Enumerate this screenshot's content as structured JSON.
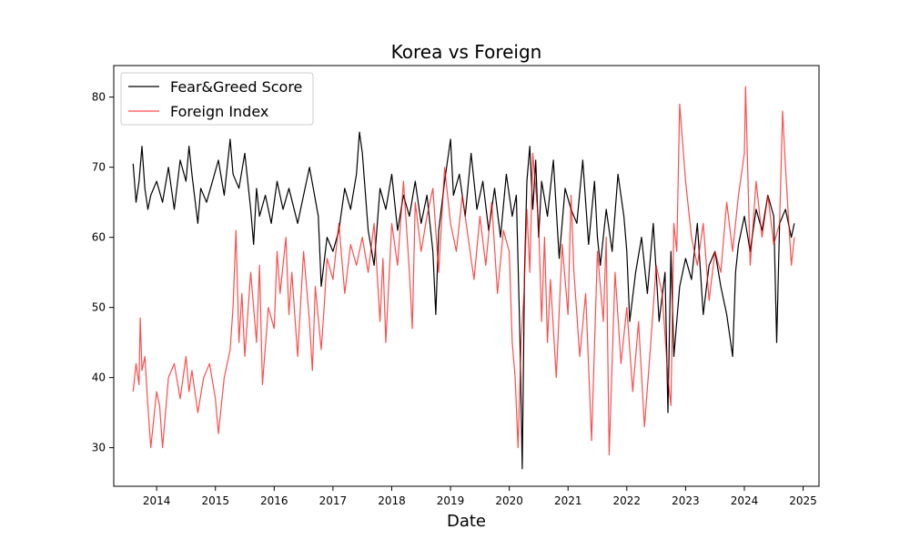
{
  "chart_data": {
    "type": "line",
    "title": "Korea vs Foreign",
    "xlabel": "Date",
    "ylabel": "",
    "xlim": [
      2013.27,
      2025.27
    ],
    "ylim": [
      24.5,
      84.5
    ],
    "xticks": [
      2014,
      2015,
      2016,
      2017,
      2018,
      2019,
      2020,
      2021,
      2022,
      2023,
      2024,
      2025
    ],
    "yticks": [
      30,
      40,
      50,
      60,
      70,
      80
    ],
    "grid": false,
    "legend_position": "top-left",
    "series": [
      {
        "name": "Fear&Greed Score",
        "color": "#000000",
        "opacity": 1,
        "x": [
          2013.6,
          2013.65,
          2013.7,
          2013.75,
          2013.8,
          2013.85,
          2013.9,
          2014.0,
          2014.1,
          2014.2,
          2014.3,
          2014.4,
          2014.5,
          2014.55,
          2014.6,
          2014.7,
          2014.75,
          2014.85,
          2014.95,
          2015.05,
          2015.15,
          2015.25,
          2015.3,
          2015.4,
          2015.5,
          2015.6,
          2015.65,
          2015.7,
          2015.75,
          2015.85,
          2015.95,
          2016.05,
          2016.15,
          2016.25,
          2016.4,
          2016.5,
          2016.6,
          2016.75,
          2016.8,
          2016.9,
          2017.0,
          2017.1,
          2017.2,
          2017.3,
          2017.4,
          2017.45,
          2017.5,
          2017.6,
          2017.7,
          2017.8,
          2017.9,
          2018.0,
          2018.1,
          2018.2,
          2018.3,
          2018.4,
          2018.5,
          2018.6,
          2018.7,
          2018.75,
          2018.8,
          2018.9,
          2019.0,
          2019.05,
          2019.15,
          2019.25,
          2019.35,
          2019.45,
          2019.55,
          2019.65,
          2019.75,
          2019.85,
          2019.95,
          2020.05,
          2020.12,
          2020.18,
          2020.22,
          2020.26,
          2020.3,
          2020.35,
          2020.4,
          2020.45,
          2020.5,
          2020.55,
          2020.65,
          2020.75,
          2020.85,
          2020.95,
          2021.05,
          2021.15,
          2021.25,
          2021.35,
          2021.45,
          2021.5,
          2021.55,
          2021.65,
          2021.75,
          2021.85,
          2021.95,
          2022.0,
          2022.05,
          2022.15,
          2022.25,
          2022.35,
          2022.45,
          2022.55,
          2022.65,
          2022.7,
          2022.75,
          2022.8,
          2022.9,
          2023.0,
          2023.1,
          2023.2,
          2023.3,
          2023.4,
          2023.5,
          2023.6,
          2023.7,
          2023.8,
          2023.85,
          2023.9,
          2024.0,
          2024.1,
          2024.2,
          2024.3,
          2024.4,
          2024.5,
          2024.55,
          2024.6,
          2024.7,
          2024.8,
          2024.85
        ],
        "values": [
          70.5,
          65,
          68,
          73,
          67,
          64,
          66,
          68,
          65,
          70,
          64,
          71,
          68,
          73,
          69,
          62,
          67,
          65,
          68,
          71,
          66,
          74,
          69,
          67,
          72,
          64,
          59,
          67,
          63,
          66,
          62,
          68,
          64,
          67,
          62,
          66,
          70,
          63,
          53,
          60,
          58,
          61,
          67,
          64,
          69,
          75,
          72,
          61,
          56,
          67,
          64,
          69,
          61,
          66,
          63,
          68,
          62,
          66,
          58,
          49,
          61,
          68,
          74,
          66,
          69,
          63,
          72,
          64,
          68,
          61,
          67,
          60,
          69,
          63,
          66,
          46,
          27,
          55,
          68,
          73,
          64,
          71,
          60,
          68,
          63,
          71,
          57,
          67,
          64,
          62,
          71,
          59,
          68,
          60,
          56,
          64,
          58,
          69,
          63,
          58,
          48,
          55,
          60,
          52,
          62,
          48,
          55,
          35,
          58,
          43,
          53,
          57,
          54,
          62,
          49,
          56,
          58,
          53,
          49,
          43,
          55,
          59,
          63,
          58,
          64,
          61,
          66,
          63,
          45,
          62,
          64,
          60,
          62
        ]
      },
      {
        "name": "Foreign Index",
        "color": "#ff0000",
        "opacity": 0.7,
        "x": [
          2013.6,
          2013.65,
          2013.7,
          2013.72,
          2013.75,
          2013.8,
          2013.85,
          2013.9,
          2013.95,
          2014.0,
          2014.05,
          2014.1,
          2014.2,
          2014.3,
          2014.4,
          2014.5,
          2014.55,
          2014.6,
          2014.7,
          2014.8,
          2014.9,
          2015.0,
          2015.05,
          2015.15,
          2015.25,
          2015.3,
          2015.35,
          2015.4,
          2015.45,
          2015.5,
          2015.6,
          2015.7,
          2015.75,
          2015.8,
          2015.9,
          2016.0,
          2016.05,
          2016.1,
          2016.2,
          2016.25,
          2016.3,
          2016.4,
          2016.5,
          2016.6,
          2016.65,
          2016.7,
          2016.8,
          2016.85,
          2016.9,
          2017.0,
          2017.1,
          2017.2,
          2017.3,
          2017.4,
          2017.5,
          2017.6,
          2017.7,
          2017.8,
          2017.85,
          2017.9,
          2018.0,
          2018.1,
          2018.2,
          2018.3,
          2018.35,
          2018.4,
          2018.5,
          2018.6,
          2018.7,
          2018.8,
          2018.9,
          2019.0,
          2019.1,
          2019.2,
          2019.3,
          2019.4,
          2019.5,
          2019.6,
          2019.7,
          2019.8,
          2019.9,
          2020.0,
          2020.05,
          2020.1,
          2020.15,
          2020.2,
          2020.25,
          2020.3,
          2020.35,
          2020.4,
          2020.5,
          2020.55,
          2020.6,
          2020.65,
          2020.7,
          2020.8,
          2020.9,
          2021.0,
          2021.05,
          2021.1,
          2021.2,
          2021.3,
          2021.4,
          2021.5,
          2021.6,
          2021.65,
          2021.7,
          2021.8,
          2021.9,
          2022.0,
          2022.1,
          2022.2,
          2022.3,
          2022.4,
          2022.5,
          2022.6,
          2022.7,
          2022.75,
          2022.8,
          2022.85,
          2022.9,
          2023.0,
          2023.1,
          2023.2,
          2023.3,
          2023.4,
          2023.5,
          2023.6,
          2023.7,
          2023.8,
          2023.9,
          2024.0,
          2024.02,
          2024.1,
          2024.2,
          2024.3,
          2024.4,
          2024.5,
          2024.6,
          2024.65,
          2024.7,
          2024.8,
          2024.85
        ],
        "values": [
          38,
          42,
          39,
          48.5,
          41,
          43,
          36,
          30,
          34,
          38,
          36,
          30,
          40,
          42,
          37,
          43,
          38,
          41,
          35,
          40,
          42,
          37,
          32,
          40,
          44,
          50,
          61,
          45,
          52,
          43,
          55,
          45,
          56,
          39,
          50,
          47,
          58,
          52,
          60,
          49,
          55,
          43,
          58,
          48,
          41,
          53,
          44,
          50,
          57,
          54,
          62,
          52,
          59,
          56,
          60,
          55,
          62,
          48,
          57,
          45,
          62,
          56,
          68,
          55,
          47,
          65,
          58,
          63,
          67,
          55,
          70,
          62,
          58,
          66,
          60,
          54,
          63,
          56,
          65,
          52,
          61,
          58,
          45,
          40,
          30,
          45,
          52,
          64,
          55,
          72,
          62,
          48,
          60,
          45,
          54,
          40,
          59,
          49,
          66,
          55,
          43,
          52,
          31,
          58,
          48,
          60,
          29,
          55,
          42,
          50,
          38,
          48,
          33,
          44,
          56,
          52,
          40,
          36,
          62,
          58,
          79,
          68,
          60,
          56,
          62,
          51,
          58,
          55,
          65,
          58,
          66,
          72,
          81.5,
          56,
          68,
          60,
          66,
          59,
          62,
          78,
          70,
          56,
          60
        ]
      }
    ]
  }
}
